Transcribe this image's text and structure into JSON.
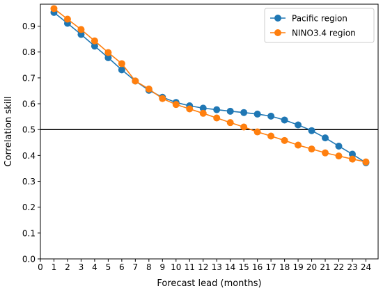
{
  "chart_data": {
    "type": "line",
    "xlabel": "Forecast lead (months)",
    "ylabel": "Correlation skill",
    "xlim": [
      0,
      24.9
    ],
    "ylim": [
      0.0,
      0.985
    ],
    "xticks": [
      0,
      1,
      2,
      3,
      4,
      5,
      6,
      7,
      8,
      9,
      10,
      11,
      12,
      13,
      14,
      15,
      16,
      17,
      18,
      19,
      20,
      21,
      22,
      23,
      24
    ],
    "yticks": [
      0.0,
      0.1,
      0.2,
      0.3,
      0.4,
      0.5,
      0.6,
      0.7,
      0.8,
      0.9
    ],
    "ytick_labels": [
      "0.0",
      "0.1",
      "0.2",
      "0.3",
      "0.4",
      "0.5",
      "0.6",
      "0.7",
      "0.8",
      "0.9"
    ],
    "x": [
      1,
      2,
      3,
      4,
      5,
      6,
      7,
      8,
      9,
      10,
      11,
      12,
      13,
      14,
      15,
      16,
      17,
      18,
      19,
      20,
      21,
      22,
      23,
      24
    ],
    "series": [
      {
        "name": "Pacific region",
        "color": "#1f77b4",
        "values": [
          0.953,
          0.911,
          0.868,
          0.823,
          0.778,
          0.731,
          0.688,
          0.652,
          0.625,
          0.605,
          0.592,
          0.583,
          0.577,
          0.571,
          0.566,
          0.56,
          0.552,
          0.537,
          0.518,
          0.496,
          0.468,
          0.436,
          0.405,
          0.372
        ]
      },
      {
        "name": "NINO3.4 region",
        "color": "#ff7f0e",
        "values": [
          0.968,
          0.927,
          0.887,
          0.843,
          0.798,
          0.755,
          0.688,
          0.657,
          0.62,
          0.597,
          0.58,
          0.563,
          0.545,
          0.527,
          0.51,
          0.491,
          0.475,
          0.458,
          0.44,
          0.425,
          0.41,
          0.398,
          0.386,
          0.375
        ]
      }
    ],
    "reference_line": {
      "y": 0.5,
      "color": "#000000"
    },
    "grid": false,
    "legend": "top-right"
  }
}
